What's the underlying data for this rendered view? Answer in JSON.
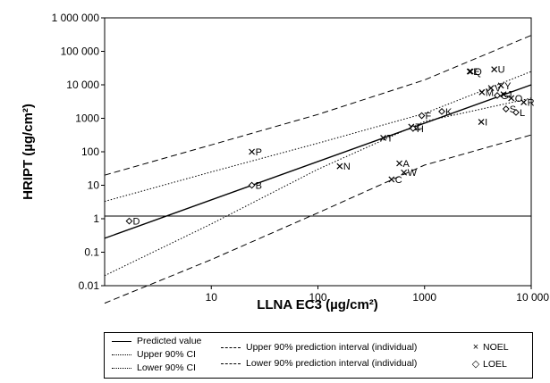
{
  "chart_data": {
    "type": "scatter",
    "xlabel": "LLNA EC3 (µg/cm²)",
    "ylabel": "HRIPT (µg/cm²)",
    "x_scale": "log",
    "y_scale": "log",
    "xlim": [
      1,
      10000
    ],
    "ylim": [
      0.01,
      1000000
    ],
    "x_ticks": [
      "10",
      "100",
      "1000",
      "10 000"
    ],
    "y_ticks": [
      "0.01",
      "0.1",
      "1",
      "10",
      "100",
      "1000",
      "10 000",
      "100 000",
      "1 000 000"
    ],
    "grid": false,
    "legend_position": "bottom",
    "legend": {
      "predicted": "Predicted value",
      "upper_ci": "Upper 90% CI",
      "lower_ci": "Lower 90% CI",
      "upper_pi": "Upper 90% prediction interval (individual)",
      "lower_pi": "Lower 90% prediction interval (individual)",
      "noel": "NOEL",
      "loel": "LOEL"
    },
    "points": [
      {
        "label": "D",
        "x": 1.7,
        "y": 0.85,
        "type": "LOEL"
      },
      {
        "label": "B",
        "x": 24,
        "y": 10,
        "type": "LOEL"
      },
      {
        "label": "P",
        "x": 24,
        "y": 100,
        "type": "NOEL"
      },
      {
        "label": "N",
        "x": 160,
        "y": 37,
        "type": "NOEL"
      },
      {
        "label": "C",
        "x": 490,
        "y": 15,
        "type": "NOEL"
      },
      {
        "label": "A",
        "x": 580,
        "y": 45,
        "type": "NOEL"
      },
      {
        "label": "W",
        "x": 640,
        "y": 24,
        "type": "NOEL"
      },
      {
        "label": "T",
        "x": 410,
        "y": 260,
        "type": "NOEL"
      },
      {
        "label": "Z",
        "x": 750,
        "y": 560,
        "type": "NOEL"
      },
      {
        "label": "H",
        "x": 780,
        "y": 500,
        "type": "LOEL"
      },
      {
        "label": "F",
        "x": 940,
        "y": 1200,
        "type": "LOEL"
      },
      {
        "label": "K",
        "x": 1450,
        "y": 1600,
        "type": "LOEL"
      },
      {
        "label": "I",
        "x": 3400,
        "y": 780,
        "type": "NOEL"
      },
      {
        "label": "E",
        "x": 2650,
        "y": 25000,
        "type": "NOEL"
      },
      {
        "label": "Q",
        "x": 2700,
        "y": 25000,
        "type": "NOEL"
      },
      {
        "label": "U",
        "x": 4500,
        "y": 29000,
        "type": "NOEL"
      },
      {
        "label": "M",
        "x": 3450,
        "y": 6000,
        "type": "NOEL"
      },
      {
        "label": "V",
        "x": 4200,
        "y": 8000,
        "type": "NOEL"
      },
      {
        "label": "Y",
        "x": 5200,
        "y": 9500,
        "type": "NOEL"
      },
      {
        "label": "G",
        "x": 4800,
        "y": 4800,
        "type": "LOEL"
      },
      {
        "label": "J",
        "x": 5500,
        "y": 5200,
        "type": "NOEL"
      },
      {
        "label": "O",
        "x": 6500,
        "y": 4000,
        "type": "NOEL"
      },
      {
        "label": "S",
        "x": 5800,
        "y": 1900,
        "type": "LOEL"
      },
      {
        "label": "R",
        "x": 8500,
        "y": 3000,
        "type": "NOEL"
      },
      {
        "label": "L",
        "x": 7200,
        "y": 1500,
        "type": "LOEL"
      }
    ],
    "lines": {
      "predicted": [
        [
          1,
          0.26
        ],
        [
          10000,
          10000
        ]
      ],
      "upper_ci": [
        [
          1,
          3.3
        ],
        [
          10,
          25
        ],
        [
          100,
          180
        ],
        [
          1000,
          1400
        ],
        [
          10000,
          25000
        ]
      ],
      "lower_ci": [
        [
          1,
          0.02
        ],
        [
          10,
          0.7
        ],
        [
          100,
          30
        ],
        [
          1000,
          800
        ],
        [
          10000,
          4000
        ]
      ],
      "upper_pi": [
        [
          1,
          20
        ],
        [
          10,
          160
        ],
        [
          100,
          1300
        ],
        [
          1000,
          14000
        ],
        [
          10000,
          300000
        ]
      ],
      "lower_pi": [
        [
          1,
          0.003
        ],
        [
          10,
          0.06
        ],
        [
          100,
          1.5
        ],
        [
          1000,
          40
        ],
        [
          10000,
          320
        ]
      ]
    }
  }
}
